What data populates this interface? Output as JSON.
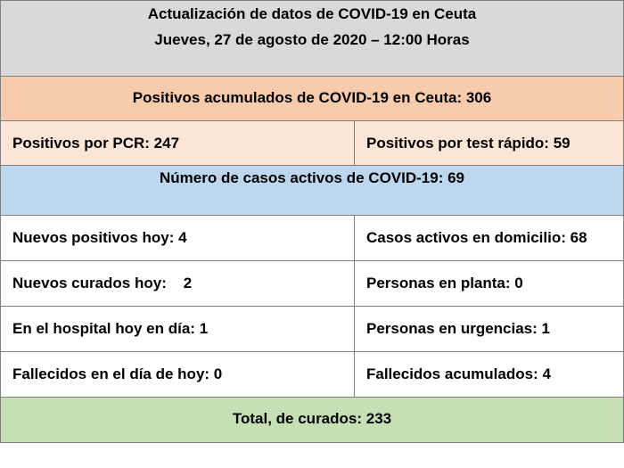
{
  "header": {
    "title": "Actualización de datos de COVID-19 en Ceuta",
    "date": "Jueves, 27 de agosto de 2020 – 12:00 Horas"
  },
  "acumulados": "Positivos acumulados de COVID-19 en Ceuta: 306",
  "pcr": "Positivos por PCR: 247",
  "test_rapido": "Positivos por test rápido: 59",
  "activos": "Número de casos activos de COVID-19: 69",
  "rows": [
    {
      "left": "Nuevos positivos hoy: 4",
      "right": "Casos activos en domicilio: 68"
    },
    {
      "left": "Nuevos curados hoy:    2",
      "right": "Personas en planta: 0"
    },
    {
      "left": "En el hospital hoy en día: 1",
      "right": "Personas en urgencias: 1"
    },
    {
      "left": "Fallecidos en el día de hoy: 0",
      "right": "Fallecidos acumulados: 4"
    }
  ],
  "total_curados": "Total, de curados: 233",
  "colors": {
    "header_bg": "#d9d9d9",
    "acumulados_bg": "#f8cbad",
    "pcr_bg": "#fbe5d6",
    "activos_bg": "#bdd7ee",
    "total_bg": "#c5e0b4"
  }
}
